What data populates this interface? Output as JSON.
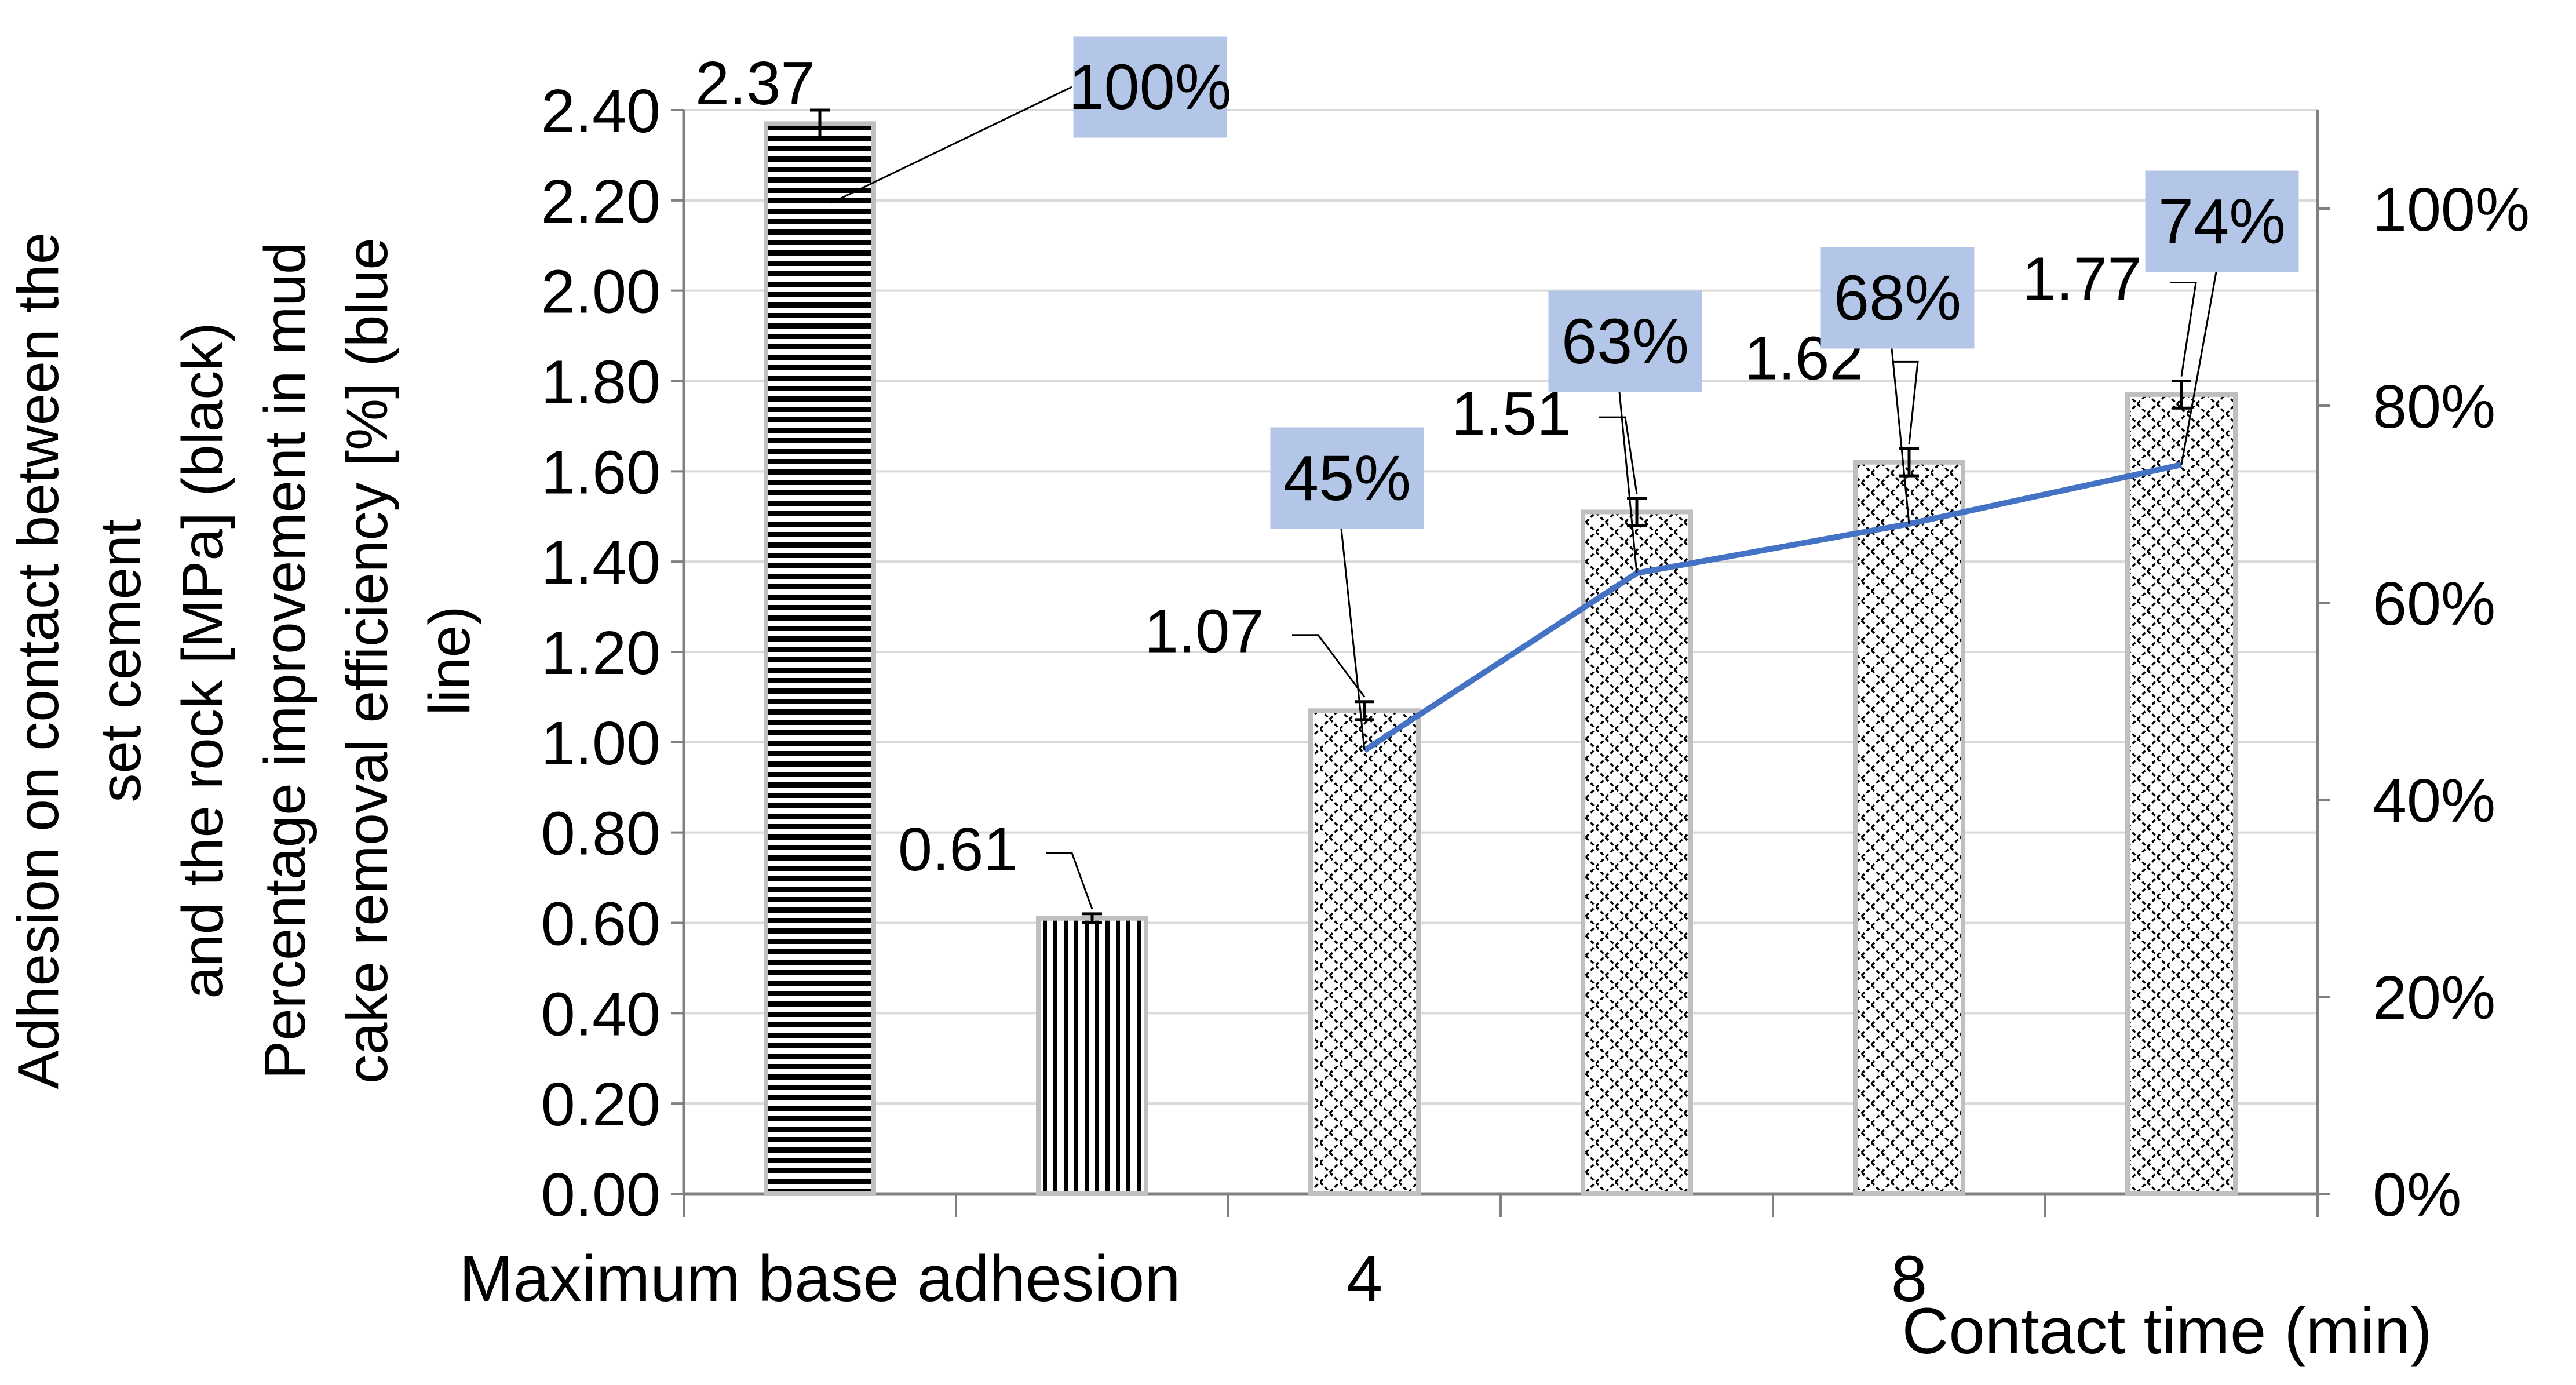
{
  "chart_data": {
    "type": "bar",
    "title": "",
    "categories": [
      "Maximum base adhesion",
      "",
      "4",
      "",
      "8",
      ""
    ],
    "xlabel": "Contact time (min)",
    "ylabel": "Adhesion on contact between the set cement and the rock [MPa] (black) Percentage improvement in mud cake removal efficiency [%] (blue line)",
    "ylabel_lines": [
      "Adhesion on contact between the",
      "set cement",
      "and the rock [MPa] (black)",
      "Percentage improvement in mud",
      "cake removal efficiency [%] (blue",
      "line)"
    ],
    "ylim": [
      0,
      2.4
    ],
    "y_ticks": [
      "0.00",
      "0.20",
      "0.40",
      "0.60",
      "0.80",
      "1.00",
      "1.20",
      "1.40",
      "1.60",
      "1.80",
      "2.00",
      "2.20",
      "2.40"
    ],
    "y2lim": [
      0,
      110
    ],
    "y2_ticks": [
      "0%",
      "20%",
      "40%",
      "60%",
      "80%",
      "100%"
    ],
    "bars": {
      "name": "Adhesion [MPa]",
      "values": [
        2.37,
        0.61,
        1.07,
        1.51,
        1.62,
        1.77
      ],
      "labels": [
        "2.37",
        "0.61",
        "1.07",
        "1.51",
        "1.62",
        "1.77"
      ],
      "errors": [
        0.03,
        0.01,
        0.02,
        0.03,
        0.03,
        0.03
      ],
      "patterns": [
        "horizontal",
        "vertical",
        "diagonal-cross",
        "diagonal-cross",
        "diagonal-cross",
        "diagonal-cross"
      ]
    },
    "line": {
      "name": "Mud cake removal efficiency improvement [%]",
      "color": "#4472c4",
      "x_index": [
        2,
        3,
        4,
        5
      ],
      "values": [
        45,
        63,
        68,
        74
      ],
      "labels": [
        "45%",
        "63%",
        "68%",
        "74%"
      ]
    },
    "standalone_label": {
      "x_index": 0,
      "value": 100,
      "label": "100%"
    },
    "label_box_color": "#b4c6e7"
  }
}
